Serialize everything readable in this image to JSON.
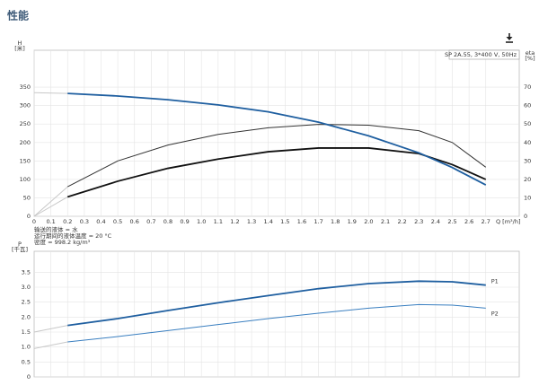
{
  "header": {
    "title": "性能"
  },
  "chart_data": [
    {
      "type": "line",
      "annotation": "SP 2A.55, 3*400 V, 50Hz",
      "ylabel": [
        "H",
        "[米]"
      ],
      "y2label": [
        "eta",
        "[%]"
      ],
      "xlabel": "Q [m³/h]",
      "notes": [
        "输送的液体 = 水",
        "运行期间的液体温度 = 20 °C",
        "密度 = 998.2 kg/m³"
      ],
      "x": [
        0,
        0.2,
        0.5,
        0.8,
        1.1,
        1.4,
        1.7,
        2.0,
        2.3,
        2.5,
        2.7
      ],
      "xlim": [
        0,
        2.9
      ],
      "xticks": [
        0,
        0.1,
        0.2,
        0.3,
        0.4,
        0.5,
        0.6,
        0.7,
        0.8,
        0.9,
        {
          "value": 1,
          "label": "1.0"
        },
        1.1,
        1.2,
        1.3,
        1.4,
        1.5,
        1.6,
        1.7,
        1.8,
        1.9,
        {
          "value": 2,
          "label": "2.0"
        },
        2.1,
        2.2,
        2.3,
        2.4,
        2.5,
        2.6,
        2.7
      ],
      "ylim": [
        0,
        450
      ],
      "yticks": [
        0,
        50,
        100,
        150,
        200,
        250,
        300,
        350
      ],
      "y2lim": [
        0,
        90
      ],
      "y2ticks": [
        0,
        10,
        20,
        30,
        40,
        50,
        60,
        70
      ],
      "grid": true,
      "series": [
        {
          "color": "#c8c8c8",
          "width": 1,
          "values": [
            335,
            333,
            null,
            null,
            null,
            null,
            null,
            null,
            null,
            null,
            null
          ]
        },
        {
          "color": "#c8c8c8",
          "width": 1,
          "values": [
            0,
            80,
            null,
            null,
            null,
            null,
            null,
            null,
            null,
            null,
            null
          ]
        },
        {
          "color": "#c8c8c8",
          "width": 1,
          "axis": "y2",
          "values": [
            0,
            10.5,
            null,
            null,
            null,
            null,
            null,
            null,
            null,
            null,
            null
          ]
        },
        {
          "color": "#333333",
          "width": 1,
          "values": [
            null,
            80,
            150,
            193,
            222,
            240,
            249,
            247,
            232,
            200,
            133
          ]
        },
        {
          "color": "#111111",
          "width": 1.8,
          "axis": "y2",
          "values": [
            null,
            10.5,
            19,
            26,
            31,
            35,
            37,
            37,
            34,
            28,
            20
          ]
        },
        {
          "color": "#1f5fa0",
          "width": 1.8,
          "values": [
            null,
            333,
            326,
            316,
            302,
            283,
            255,
            218,
            172,
            132,
            85
          ]
        }
      ]
    },
    {
      "type": "line",
      "ylabel": [
        "P",
        "[千瓦]"
      ],
      "x": [
        0,
        0.2,
        0.5,
        0.8,
        1.1,
        1.4,
        1.7,
        2.0,
        2.3,
        2.5,
        2.7
      ],
      "xlim": [
        0,
        2.9
      ],
      "ylim": [
        0,
        4.2
      ],
      "yticks": [
        0,
        0.5,
        {
          "value": 1,
          "label": "1.0"
        },
        1.5,
        {
          "value": 2,
          "label": "2.0"
        },
        2.5,
        {
          "value": 3,
          "label": "3.0"
        },
        3.5
      ],
      "grid": true,
      "series": [
        {
          "color": "#c8c8c8",
          "width": 1,
          "values": [
            1.5,
            1.72,
            null,
            null,
            null,
            null,
            null,
            null,
            null,
            null,
            null
          ]
        },
        {
          "color": "#c8c8c8",
          "width": 1,
          "values": [
            0.95,
            1.17,
            null,
            null,
            null,
            null,
            null,
            null,
            null,
            null,
            null
          ]
        },
        {
          "name": "P1",
          "color": "#1f5fa0",
          "width": 1.8,
          "values": [
            null,
            1.72,
            1.95,
            2.22,
            2.48,
            2.72,
            2.95,
            3.12,
            3.2,
            3.18,
            3.07
          ]
        },
        {
          "name": "P2",
          "color": "#3a7fc0",
          "width": 1,
          "values": [
            null,
            1.17,
            1.35,
            1.55,
            1.75,
            1.95,
            2.13,
            2.3,
            2.42,
            2.4,
            2.3
          ]
        }
      ]
    }
  ]
}
